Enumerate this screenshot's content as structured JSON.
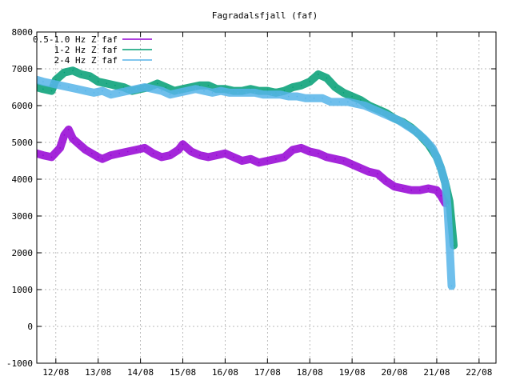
{
  "chart_data": {
    "type": "line",
    "title": "Fagradalsfjall (faf)",
    "xlabel": "",
    "ylabel": "",
    "ylim": [
      -1000,
      8000
    ],
    "yticks": [
      -1000,
      0,
      1000,
      2000,
      3000,
      4000,
      5000,
      6000,
      7000,
      8000
    ],
    "xlim": [
      11.55,
      22.4
    ],
    "xticks": [
      {
        "x": 12,
        "label": "12/08"
      },
      {
        "x": 13,
        "label": "13/08"
      },
      {
        "x": 14,
        "label": "14/08"
      },
      {
        "x": 15,
        "label": "15/08"
      },
      {
        "x": 16,
        "label": "16/08"
      },
      {
        "x": 17,
        "label": "17/08"
      },
      {
        "x": 18,
        "label": "18/08"
      },
      {
        "x": 19,
        "label": "19/08"
      },
      {
        "x": 20,
        "label": "20/08"
      },
      {
        "x": 21,
        "label": "21/08"
      },
      {
        "x": 22,
        "label": "22/08"
      }
    ],
    "grid": true,
    "legend_position": "top-left",
    "series": [
      {
        "name": "0.5-1.0 Hz Z faf",
        "color": "#9400d3",
        "x": [
          11.55,
          11.7,
          11.9,
          12.1,
          12.2,
          12.3,
          12.4,
          12.55,
          12.7,
          12.85,
          13.0,
          13.1,
          13.3,
          13.5,
          13.7,
          13.9,
          14.1,
          14.3,
          14.5,
          14.7,
          14.9,
          15.0,
          15.2,
          15.4,
          15.6,
          15.8,
          16.0,
          16.2,
          16.4,
          16.6,
          16.8,
          17.0,
          17.2,
          17.4,
          17.6,
          17.8,
          18.0,
          18.2,
          18.4,
          18.6,
          18.8,
          19.0,
          19.2,
          19.4,
          19.6,
          19.8,
          20.0,
          20.2,
          20.4,
          20.6,
          20.8,
          21.0,
          21.1,
          21.2
        ],
        "values": [
          4700,
          4650,
          4600,
          4850,
          5200,
          5350,
          5100,
          4950,
          4800,
          4700,
          4600,
          4550,
          4650,
          4700,
          4750,
          4800,
          4850,
          4700,
          4600,
          4650,
          4800,
          4950,
          4750,
          4650,
          4600,
          4650,
          4700,
          4600,
          4500,
          4550,
          4450,
          4500,
          4550,
          4600,
          4800,
          4850,
          4750,
          4700,
          4600,
          4550,
          4500,
          4400,
          4300,
          4200,
          4150,
          3950,
          3800,
          3750,
          3700,
          3700,
          3750,
          3700,
          3550,
          3350
        ]
      },
      {
        "name": "1-2 Hz Z faf",
        "color": "#009e73",
        "x": [
          11.55,
          11.7,
          11.9,
          12.0,
          12.2,
          12.4,
          12.6,
          12.8,
          13.0,
          13.2,
          13.4,
          13.6,
          13.8,
          14.0,
          14.2,
          14.4,
          14.6,
          14.8,
          15.0,
          15.2,
          15.4,
          15.6,
          15.8,
          16.0,
          16.2,
          16.4,
          16.6,
          16.8,
          17.0,
          17.2,
          17.4,
          17.6,
          17.8,
          18.0,
          18.2,
          18.4,
          18.6,
          18.8,
          19.0,
          19.2,
          19.4,
          19.6,
          19.8,
          20.0,
          20.2,
          20.4,
          20.6,
          20.8,
          21.0,
          21.1,
          21.2,
          21.3,
          21.35,
          21.4
        ],
        "values": [
          6500,
          6450,
          6400,
          6700,
          6900,
          6950,
          6850,
          6800,
          6650,
          6600,
          6550,
          6500,
          6400,
          6450,
          6500,
          6600,
          6500,
          6400,
          6450,
          6500,
          6550,
          6550,
          6450,
          6450,
          6400,
          6400,
          6450,
          6400,
          6400,
          6350,
          6400,
          6500,
          6550,
          6650,
          6850,
          6750,
          6500,
          6350,
          6250,
          6150,
          6000,
          5900,
          5800,
          5650,
          5550,
          5400,
          5200,
          4950,
          4600,
          4300,
          3900,
          3400,
          2800,
          2200
        ]
      },
      {
        "name": "2-4 Hz Z faf",
        "color": "#56b4e9",
        "x": [
          11.55,
          11.7,
          11.9,
          12.1,
          12.3,
          12.5,
          12.7,
          12.9,
          13.1,
          13.3,
          13.5,
          13.7,
          13.9,
          14.1,
          14.3,
          14.5,
          14.7,
          14.9,
          15.1,
          15.3,
          15.5,
          15.7,
          15.9,
          16.1,
          16.3,
          16.5,
          16.7,
          16.9,
          17.1,
          17.3,
          17.5,
          17.7,
          17.9,
          18.1,
          18.3,
          18.5,
          18.7,
          18.9,
          19.1,
          19.3,
          19.5,
          19.7,
          19.9,
          20.1,
          20.3,
          20.5,
          20.7,
          20.9,
          21.0,
          21.1,
          21.2,
          21.25,
          21.3,
          21.35
        ],
        "values": [
          6700,
          6650,
          6600,
          6550,
          6500,
          6450,
          6400,
          6350,
          6400,
          6300,
          6350,
          6400,
          6450,
          6500,
          6450,
          6400,
          6300,
          6350,
          6400,
          6450,
          6400,
          6350,
          6400,
          6350,
          6350,
          6350,
          6350,
          6300,
          6300,
          6300,
          6250,
          6250,
          6200,
          6200,
          6200,
          6100,
          6100,
          6100,
          6050,
          6000,
          5900,
          5800,
          5700,
          5600,
          5450,
          5300,
          5100,
          4850,
          4600,
          4300,
          3900,
          3300,
          2300,
          1100
        ]
      }
    ]
  }
}
